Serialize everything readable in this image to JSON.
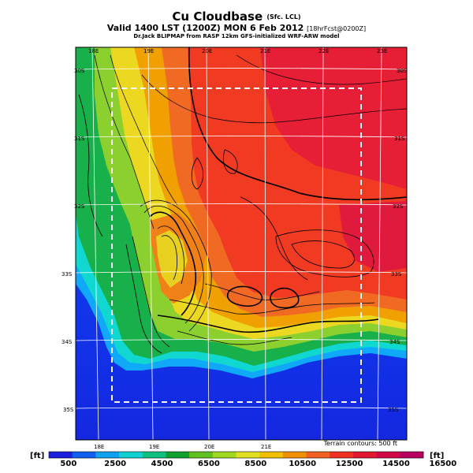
{
  "header": {
    "title": "Cu Cloudbase",
    "title_suffix": "(Sfc. LCL)",
    "valid_line": "Valid 1400 LST (1200Z) MON 6 Feb 2012",
    "valid_suffix": "[18hrFcst@0200Z]",
    "credit_line": "Dr.Jack BLIPMAP from RASP 12km GFS-initialized WRF-ARW model"
  },
  "map": {
    "lon_top_labels": [
      "18E",
      "19E",
      "20E",
      "21E",
      "22E",
      "23E"
    ],
    "lon_bottom_labels": [
      "18E",
      "19E",
      "20E",
      "21E"
    ],
    "lat_left_labels": [
      "30S",
      "31S",
      "32S",
      "33S",
      "34S",
      "35S"
    ],
    "lat_right_labels": [
      "30S",
      "31S",
      "32S",
      "33S",
      "34S",
      "35S"
    ],
    "terrain_note": "Terrain contours: 500 ft"
  },
  "colorbar": {
    "unit_left": "[ft]",
    "unit_right": "[ft]",
    "labels": [
      "500",
      "2500",
      "4500",
      "6500",
      "8500",
      "10500",
      "12500",
      "14500",
      "16500"
    ],
    "colors": [
      "#1d1ddc",
      "#1060f0",
      "#10a0f0",
      "#10d0d0",
      "#10c080",
      "#10a030",
      "#60c020",
      "#a0d820",
      "#e0e020",
      "#f0c000",
      "#f09000",
      "#f06020",
      "#f03020",
      "#e01830",
      "#d00848",
      "#b80060"
    ]
  }
}
